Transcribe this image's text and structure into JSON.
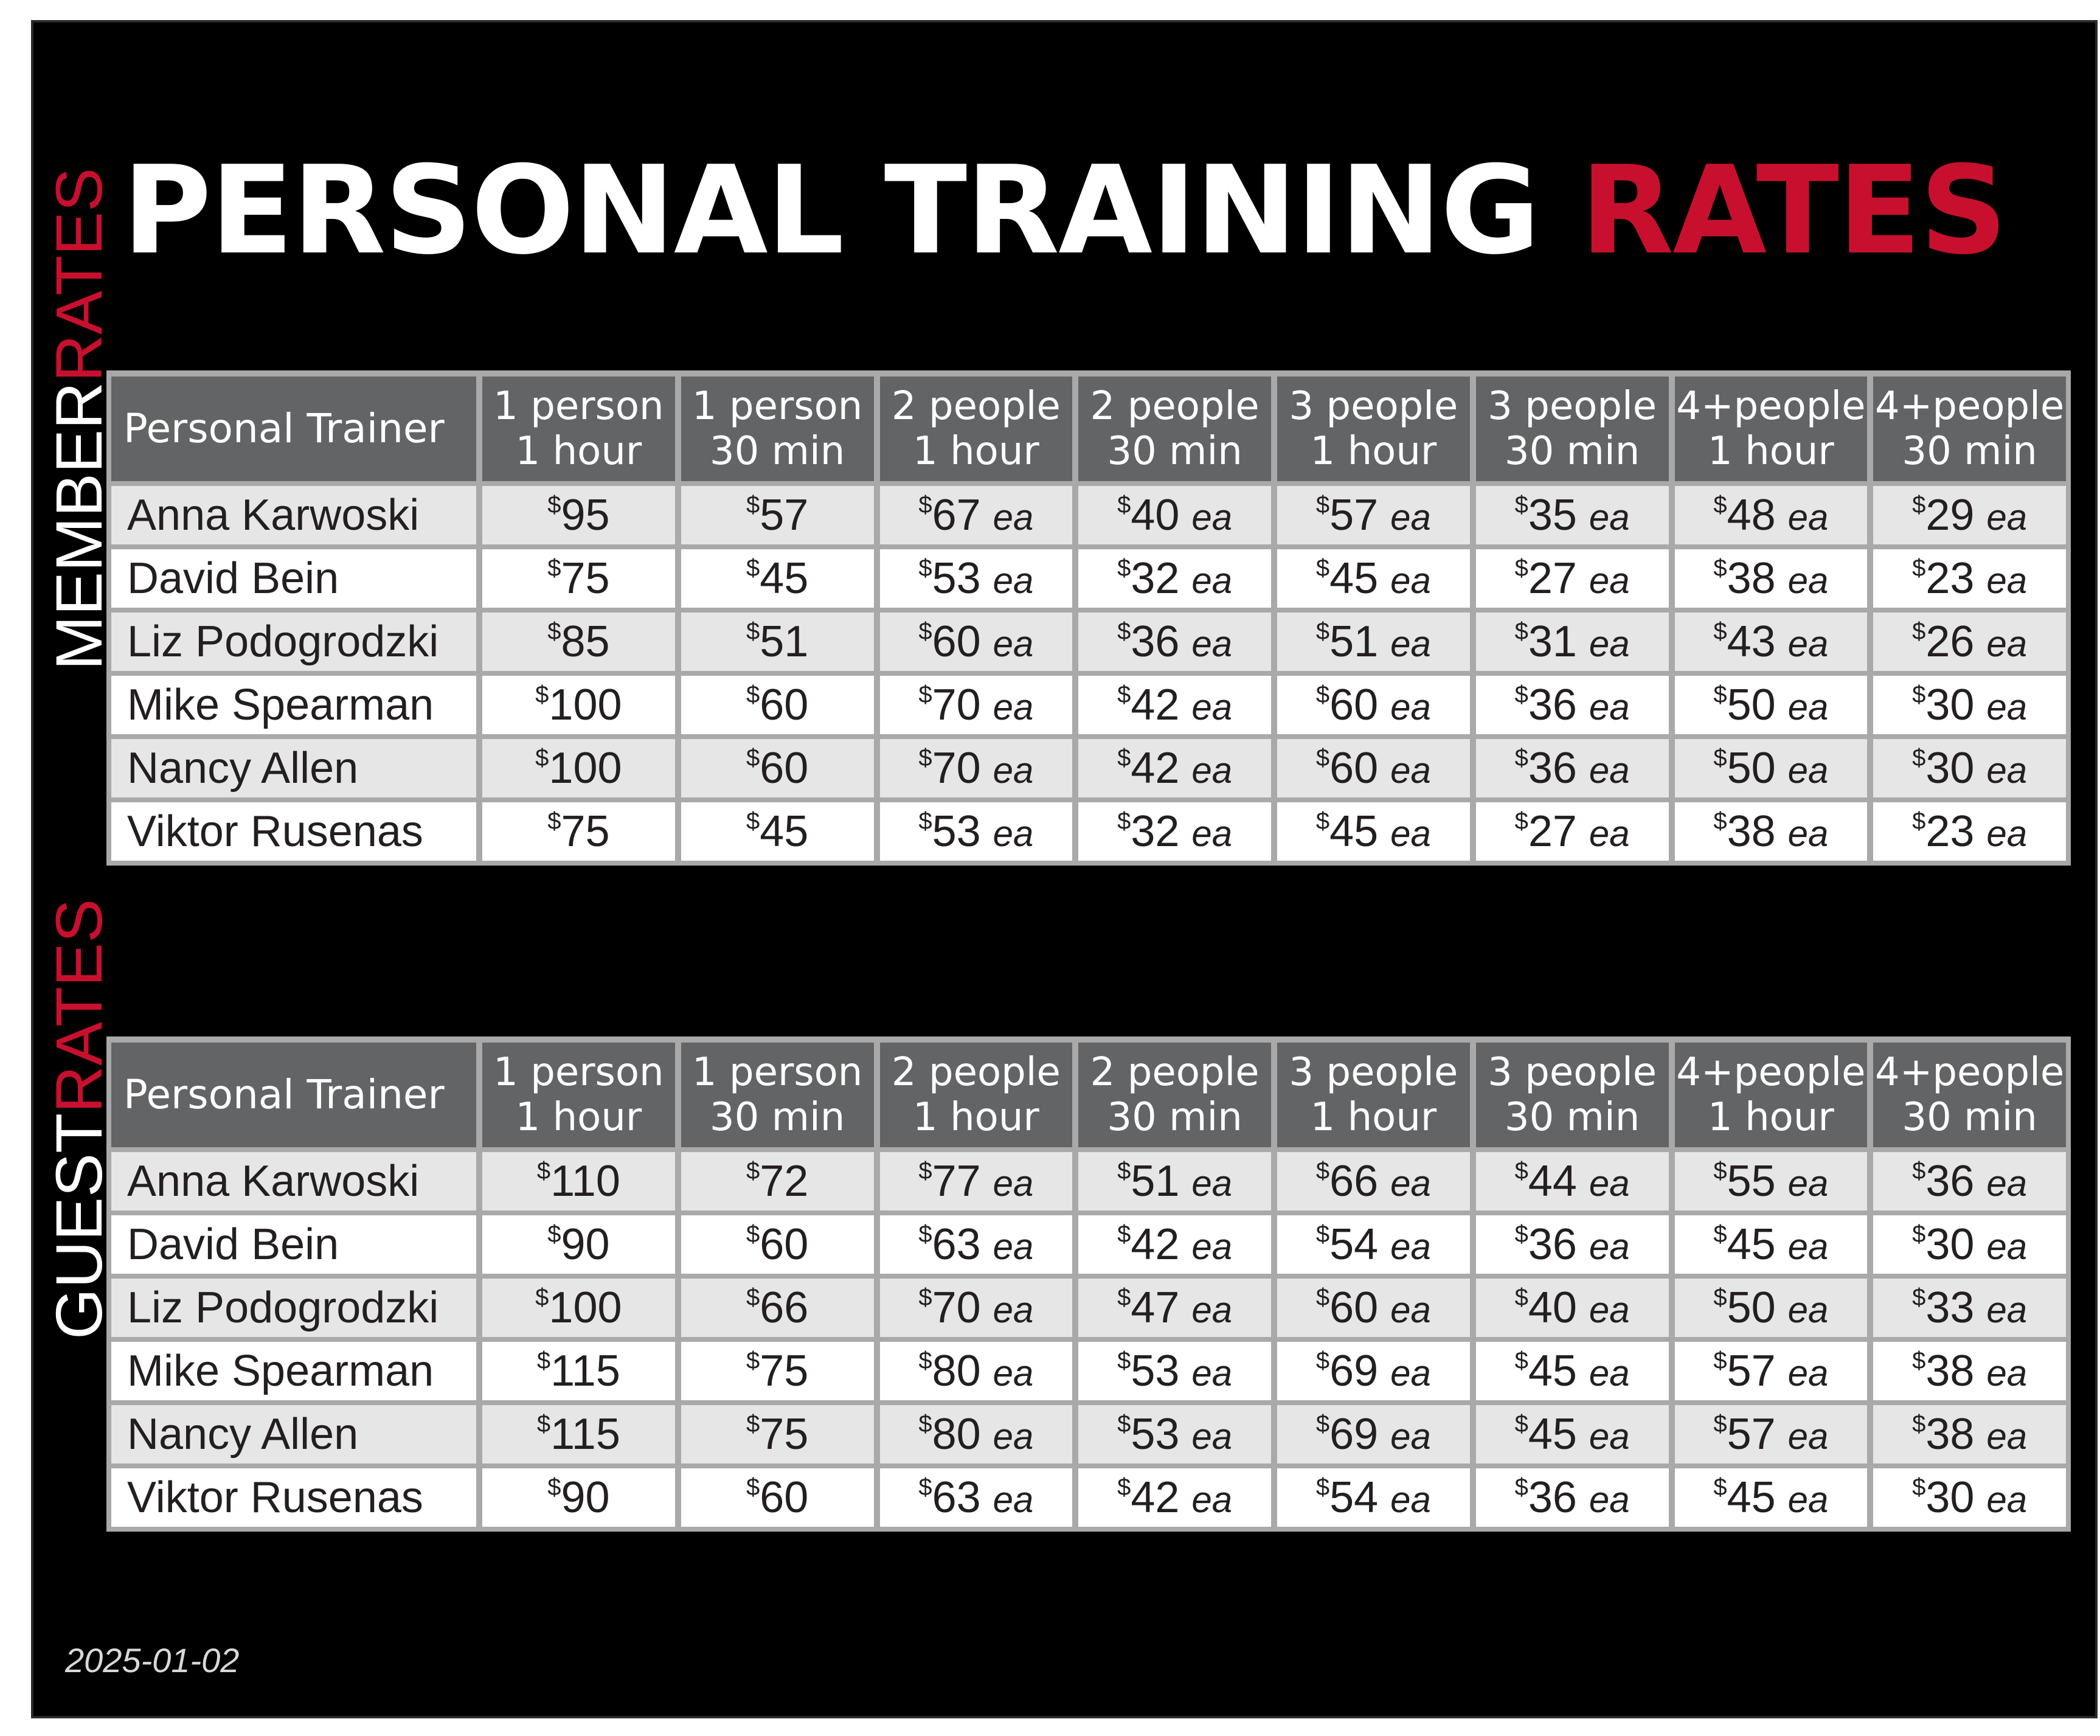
{
  "title": {
    "main": "PERSONAL TRAINING",
    "accent": "RATES"
  },
  "member_label": {
    "main": "MEMBER",
    "accent": "RATES"
  },
  "guest_label": {
    "main": "GUEST",
    "accent": "RATES"
  },
  "columns": [
    {
      "line1": "Personal Trainer",
      "line2": ""
    },
    {
      "line1": "1 person",
      "line2": "1 hour"
    },
    {
      "line1": "1 person",
      "line2": "30 min"
    },
    {
      "line1": "2 people",
      "line2": "1 hour"
    },
    {
      "line1": "2 people",
      "line2": "30 min"
    },
    {
      "line1": "3 people",
      "line2": "1 hour"
    },
    {
      "line1": "3 people",
      "line2": "30 min"
    },
    {
      "line1": "4+people",
      "line2": "1 hour"
    },
    {
      "line1": "4+people",
      "line2": "30 min"
    }
  ],
  "currency_symbol": "$",
  "each_suffix": "ea",
  "member_rates": [
    {
      "trainer": "Anna Karwoski",
      "prices": [
        "95",
        "57",
        "67",
        "40",
        "57",
        "35",
        "48",
        "29"
      ]
    },
    {
      "trainer": "David Bein",
      "prices": [
        "75",
        "45",
        "53",
        "32",
        "45",
        "27",
        "38",
        "23"
      ]
    },
    {
      "trainer": "Liz Podogrodzki",
      "prices": [
        "85",
        "51",
        "60",
        "36",
        "51",
        "31",
        "43",
        "26"
      ]
    },
    {
      "trainer": "Mike Spearman",
      "prices": [
        "100",
        "60",
        "70",
        "42",
        "60",
        "36",
        "50",
        "30"
      ]
    },
    {
      "trainer": "Nancy Allen",
      "prices": [
        "100",
        "60",
        "70",
        "42",
        "60",
        "36",
        "50",
        "30"
      ]
    },
    {
      "trainer": "Viktor Rusenas",
      "prices": [
        "75",
        "45",
        "53",
        "32",
        "45",
        "27",
        "38",
        "23"
      ]
    }
  ],
  "guest_rates": [
    {
      "trainer": "Anna Karwoski",
      "prices": [
        "110",
        "72",
        "77",
        "51",
        "66",
        "44",
        "55",
        "36"
      ]
    },
    {
      "trainer": "David Bein",
      "prices": [
        "90",
        "60",
        "63",
        "42",
        "54",
        "36",
        "45",
        "30"
      ]
    },
    {
      "trainer": "Liz Podogrodzki",
      "prices": [
        "100",
        "66",
        "70",
        "47",
        "60",
        "40",
        "50",
        "33"
      ]
    },
    {
      "trainer": "Mike Spearman",
      "prices": [
        "115",
        "75",
        "80",
        "53",
        "69",
        "45",
        "57",
        "38"
      ]
    },
    {
      "trainer": "Nancy Allen",
      "prices": [
        "115",
        "75",
        "80",
        "53",
        "69",
        "45",
        "57",
        "38"
      ]
    },
    {
      "trainer": "Viktor Rusenas",
      "prices": [
        "90",
        "60",
        "63",
        "42",
        "54",
        "36",
        "45",
        "30"
      ]
    }
  ],
  "footer_date": "2025-01-02",
  "colors": {
    "background": "#000000",
    "accent_red": "#c8102e",
    "header_gray": "#636466",
    "row_shade": "#e6e6e6",
    "row_plain": "#ffffff",
    "grid_gray": "#a9a9a9"
  }
}
